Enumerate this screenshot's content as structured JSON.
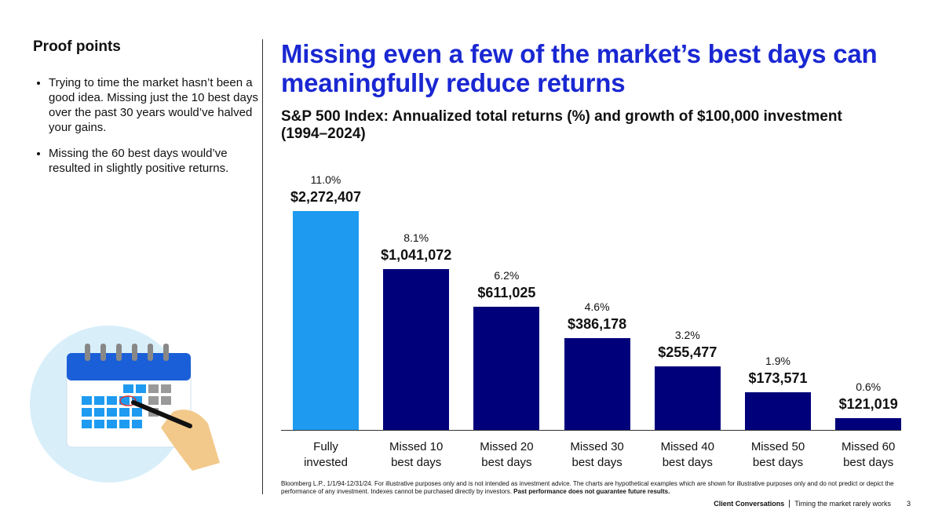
{
  "sidebar": {
    "heading": "Proof points",
    "bullets": [
      "Trying to time the market hasn’t been a good idea. Missing just the 10 best days over the past 30 years would’ve halved your gains.",
      "Missing the 60 best days would’ve resulted in slightly positive returns."
    ]
  },
  "chart_data": {
    "type": "bar",
    "title": "Missing even a few of the market’s best days can meaningfully reduce returns",
    "subtitle": "S&P 500 Index: Annualized total returns (%) and growth of $100,000 investment (1994–2024)",
    "categories": [
      "Fully invested",
      "Missed 10 best days",
      "Missed 20 best days",
      "Missed 30 best days",
      "Missed 40 best days",
      "Missed 50 best days",
      "Missed 60 best days"
    ],
    "values": [
      11.0,
      8.1,
      6.2,
      4.6,
      3.2,
      1.9,
      0.6
    ],
    "value_labels": [
      "11.0%",
      "8.1%",
      "6.2%",
      "4.6%",
      "3.2%",
      "1.9%",
      "0.6%"
    ],
    "dollar_labels": [
      "$2,272,407",
      "$1,041,072",
      "$611,025",
      "$386,178",
      "$255,477",
      "$173,571",
      "$121,019"
    ],
    "colors": [
      "#1e9bf0",
      "#00007a",
      "#00007a",
      "#00007a",
      "#00007a",
      "#00007a",
      "#00007a"
    ]
  },
  "footnote": {
    "text": "Bloomberg L.P., 1/1/94-12/31/24. For illustrative purposes only and is not intended as investment advice. The charts are hypothetical examples which are shown for illustrative purposes only and do not predict or depict the performance of any investment. Indexes cannot be purchased directly by investors.",
    "emphasis": "Past performance does not guarantee future results."
  },
  "footer": {
    "brand": "Client Conversations",
    "topic": "Timing the market rarely works",
    "page": "3"
  }
}
